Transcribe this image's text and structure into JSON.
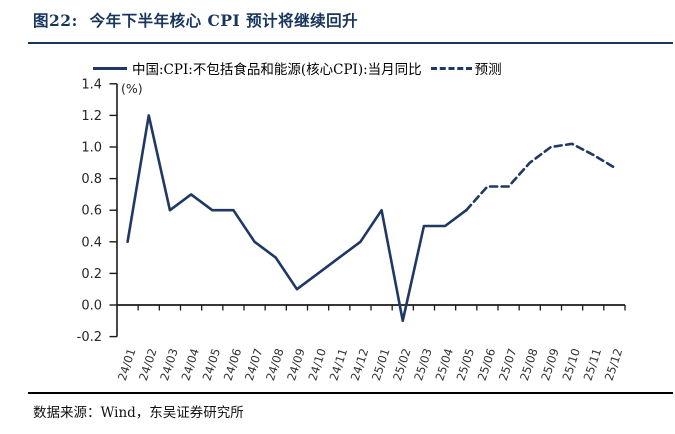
{
  "header": {
    "title": "图22:  今年下半年核心 CPI 预计将继续回升",
    "accent_color": "#17365d"
  },
  "legend": {
    "series1_label": "中国:CPI:不包括食品和能源(核心CPI):当月同比",
    "series2_label": "预测"
  },
  "footer": {
    "source": "数据来源：Wind，东吴证券研究所"
  },
  "chart_data": {
    "type": "line",
    "title": "图22: 今年下半年核心 CPI 预计将继续回升",
    "unit_label": "(%)",
    "xlabel": "",
    "ylabel": "(%)",
    "ylim": [
      -0.2,
      1.4
    ],
    "ytick_step": 0.2,
    "yticks": [
      1.4,
      1.2,
      1.0,
      0.8,
      0.6,
      0.4,
      0.2,
      0.0,
      -0.2
    ],
    "grid": false,
    "legend_position": "top",
    "axis_color": "#1a1a1a",
    "tick_label_color": "#333333",
    "categories": [
      "24/01",
      "24/02",
      "24/03",
      "24/04",
      "24/05",
      "24/06",
      "24/07",
      "24/08",
      "24/09",
      "24/10",
      "24/11",
      "24/12",
      "25/01",
      "25/02",
      "25/03",
      "25/04",
      "25/05",
      "25/06",
      "25/07",
      "25/08",
      "25/09",
      "25/10",
      "25/11",
      "25/12"
    ],
    "series": [
      {
        "name": "中国:CPI:不包括食品和能源(核心CPI):当月同比",
        "style": "solid",
        "color": "#1f3864",
        "values": [
          0.4,
          1.2,
          0.6,
          0.7,
          0.6,
          0.6,
          0.4,
          0.3,
          0.1,
          0.2,
          0.3,
          0.4,
          0.6,
          -0.1,
          0.5,
          0.5,
          0.6,
          null,
          null,
          null,
          null,
          null,
          null,
          null
        ]
      },
      {
        "name": "预测",
        "style": "dashed",
        "color": "#1f3864",
        "values": [
          null,
          null,
          null,
          null,
          null,
          null,
          null,
          null,
          null,
          null,
          null,
          null,
          null,
          null,
          null,
          null,
          0.6,
          0.75,
          0.75,
          0.9,
          1.0,
          1.02,
          0.95,
          0.87
        ]
      }
    ]
  }
}
